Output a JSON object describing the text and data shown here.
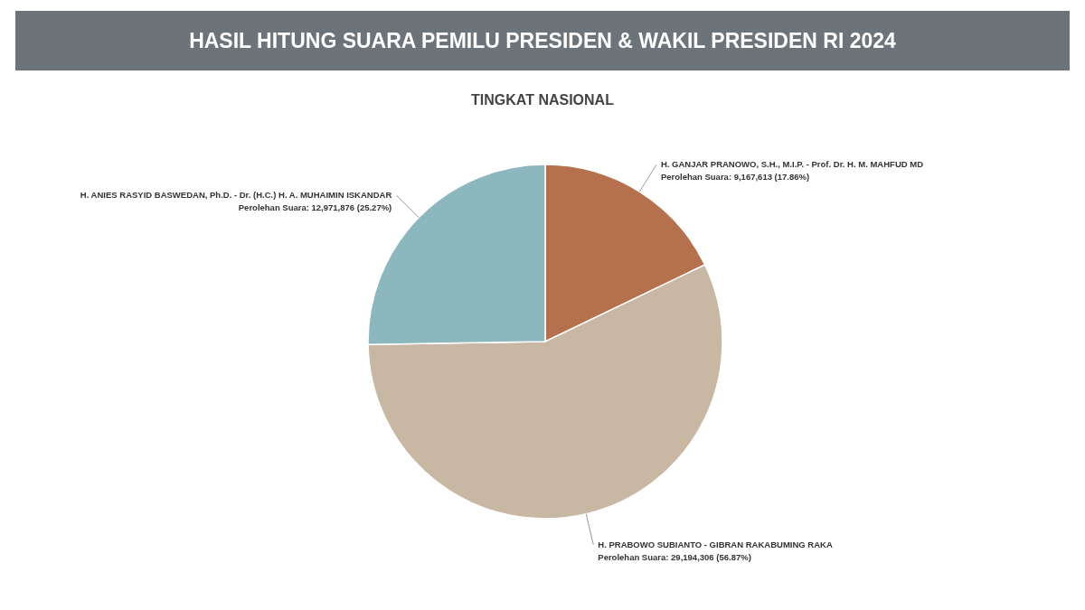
{
  "chart_data": {
    "type": "pie",
    "title": "HASIL HITUNG SUARA PEMILU PRESIDEN & WAKIL PRESIDEN RI 2024",
    "subtitle": "TINGKAT NASIONAL",
    "categories": [
      "H. GANJAR PRANOWO, S.H., M.I.P. - Prof. Dr. H. M. MAHFUD MD",
      "H. PRABOWO SUBIANTO - GIBRAN RAKABUMING RAKA",
      "H. ANIES RASYID BASWEDAN, Ph.D. - Dr. (H.C.) H. A. MUHAIMIN ISKANDAR"
    ],
    "values": [
      9167613,
      29194306,
      12971876
    ],
    "colors": [
      "#b5714e",
      "#c8b7a3",
      "#8db7bf"
    ],
    "value_labels": [
      "Perolehan Suara: 9,167,613 (17.86%)",
      "Perolehan Suara: 29,194,306 (56.87%)",
      "Perolehan Suara: 12,971,876 (25.27%)"
    ]
  }
}
